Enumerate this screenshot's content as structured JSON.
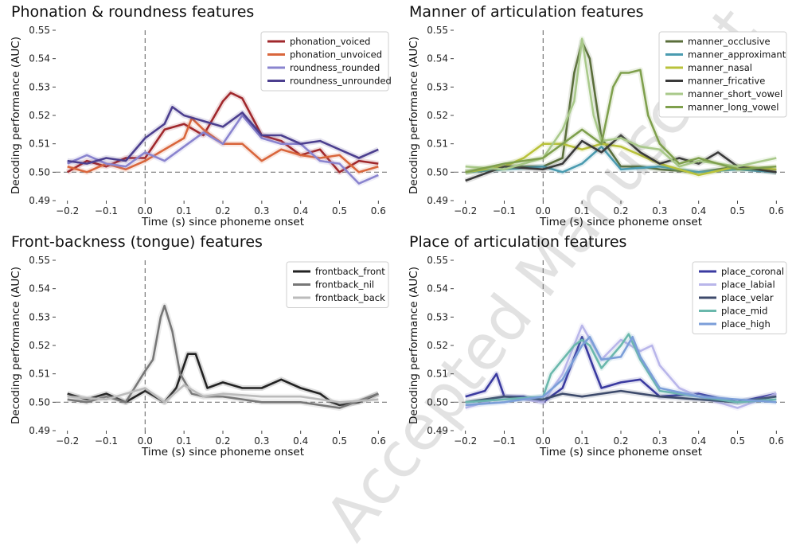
{
  "watermark": "Accepted Manuscript",
  "chart_data": [
    {
      "type": "line",
      "title": "Phonation & roundness features",
      "xlabel": "Time (s) since phoneme onset",
      "ylabel": "Decoding performance (AUC)",
      "xlim": [
        -0.23,
        0.63
      ],
      "ylim": [
        0.49,
        0.55
      ],
      "xticks": [
        -0.2,
        -0.1,
        0.0,
        0.1,
        0.2,
        0.3,
        0.4,
        0.5,
        0.6
      ],
      "xtick_labels": [
        "−0.2",
        "−0.1",
        "0.0",
        "0.1",
        "0.2",
        "0.3",
        "0.4",
        "0.5",
        "0.6"
      ],
      "yticks": [
        0.49,
        0.5,
        0.51,
        0.52,
        0.53,
        0.54,
        0.55
      ],
      "ytick_labels": [
        "0.49",
        "0.50",
        "0.51",
        "0.52",
        "0.53",
        "0.54",
        "0.55"
      ],
      "legend_position": "top-right",
      "series": [
        {
          "name": "phonation_voiced",
          "color": "#a0282c",
          "x": [
            -0.2,
            -0.15,
            -0.1,
            -0.05,
            0.0,
            0.05,
            0.1,
            0.15,
            0.2,
            0.22,
            0.25,
            0.3,
            0.35,
            0.4,
            0.45,
            0.5,
            0.55,
            0.6
          ],
          "y": [
            0.5,
            0.504,
            0.502,
            0.505,
            0.505,
            0.515,
            0.517,
            0.513,
            0.525,
            0.528,
            0.526,
            0.513,
            0.511,
            0.506,
            0.508,
            0.5,
            0.504,
            0.503
          ]
        },
        {
          "name": "phonation_unvoiced",
          "color": "#d9663c",
          "x": [
            -0.2,
            -0.15,
            -0.1,
            -0.05,
            0.0,
            0.05,
            0.1,
            0.12,
            0.15,
            0.2,
            0.25,
            0.3,
            0.35,
            0.4,
            0.45,
            0.5,
            0.55,
            0.6
          ],
          "y": [
            0.502,
            0.5,
            0.503,
            0.501,
            0.504,
            0.508,
            0.512,
            0.519,
            0.515,
            0.51,
            0.51,
            0.504,
            0.508,
            0.506,
            0.505,
            0.506,
            0.5,
            0.502
          ]
        },
        {
          "name": "roundness_rounded",
          "color": "#8a84cf",
          "x": [
            -0.2,
            -0.15,
            -0.1,
            -0.05,
            0.0,
            0.05,
            0.1,
            0.15,
            0.2,
            0.25,
            0.3,
            0.35,
            0.4,
            0.45,
            0.5,
            0.55,
            0.6
          ],
          "y": [
            0.503,
            0.506,
            0.503,
            0.502,
            0.507,
            0.504,
            0.509,
            0.514,
            0.51,
            0.52,
            0.512,
            0.51,
            0.51,
            0.504,
            0.503,
            0.496,
            0.499
          ]
        },
        {
          "name": "roundness_unrounded",
          "color": "#4c3f8f",
          "x": [
            -0.2,
            -0.15,
            -0.1,
            -0.05,
            0.0,
            0.05,
            0.07,
            0.1,
            0.15,
            0.2,
            0.25,
            0.3,
            0.35,
            0.4,
            0.45,
            0.5,
            0.55,
            0.6
          ],
          "y": [
            0.504,
            0.503,
            0.505,
            0.504,
            0.512,
            0.517,
            0.523,
            0.52,
            0.518,
            0.516,
            0.521,
            0.513,
            0.513,
            0.51,
            0.511,
            0.508,
            0.505,
            0.508
          ]
        }
      ]
    },
    {
      "type": "line",
      "title": "Manner of articulation features",
      "xlabel": "Time (s) since phoneme onset",
      "ylabel": "Decoding performance (AUC)",
      "xlim": [
        -0.23,
        0.63
      ],
      "ylim": [
        0.49,
        0.55
      ],
      "xticks": [
        -0.2,
        -0.1,
        0.0,
        0.1,
        0.2,
        0.3,
        0.4,
        0.5,
        0.6
      ],
      "xtick_labels": [
        "−0.2",
        "−0.1",
        "0.0",
        "0.1",
        "0.2",
        "0.3",
        "0.4",
        "0.5",
        "0.6"
      ],
      "yticks": [
        0.49,
        0.5,
        0.51,
        0.52,
        0.53,
        0.54,
        0.55
      ],
      "ytick_labels": [
        "0.49",
        "0.50",
        "0.51",
        "0.52",
        "0.53",
        "0.54",
        "0.55"
      ],
      "legend_position": "top-right",
      "series": [
        {
          "name": "manner_occlusive",
          "color": "#5a6e3a",
          "x": [
            -0.2,
            -0.1,
            0.0,
            0.05,
            0.08,
            0.1,
            0.12,
            0.15,
            0.2,
            0.25,
            0.3,
            0.4,
            0.5,
            0.6
          ],
          "y": [
            0.5,
            0.502,
            0.502,
            0.505,
            0.535,
            0.546,
            0.54,
            0.512,
            0.502,
            0.502,
            0.501,
            0.5,
            0.502,
            0.5
          ]
        },
        {
          "name": "manner_approximant",
          "color": "#4a9bb0",
          "x": [
            -0.2,
            -0.1,
            0.0,
            0.05,
            0.1,
            0.15,
            0.2,
            0.3,
            0.4,
            0.5,
            0.6
          ],
          "y": [
            0.5,
            0.501,
            0.502,
            0.5,
            0.503,
            0.509,
            0.501,
            0.502,
            0.5,
            0.501,
            0.5
          ]
        },
        {
          "name": "manner_nasal",
          "color": "#b9c23a",
          "x": [
            -0.2,
            -0.1,
            -0.05,
            0.0,
            0.05,
            0.1,
            0.15,
            0.2,
            0.3,
            0.4,
            0.5,
            0.6
          ],
          "y": [
            0.5,
            0.502,
            0.505,
            0.51,
            0.51,
            0.508,
            0.51,
            0.509,
            0.503,
            0.499,
            0.502,
            0.501
          ]
        },
        {
          "name": "manner_fricative",
          "color": "#3a3a3a",
          "x": [
            -0.2,
            -0.1,
            0.0,
            0.05,
            0.1,
            0.15,
            0.2,
            0.25,
            0.3,
            0.35,
            0.4,
            0.45,
            0.5,
            0.6
          ],
          "y": [
            0.497,
            0.502,
            0.501,
            0.503,
            0.511,
            0.507,
            0.513,
            0.507,
            0.503,
            0.505,
            0.503,
            0.507,
            0.502,
            0.5
          ]
        },
        {
          "name": "manner_short_vowel",
          "color": "#a9c98a",
          "x": [
            -0.2,
            -0.1,
            0.0,
            0.05,
            0.08,
            0.1,
            0.13,
            0.15,
            0.2,
            0.25,
            0.3,
            0.35,
            0.4,
            0.5,
            0.6
          ],
          "y": [
            0.502,
            0.501,
            0.505,
            0.515,
            0.525,
            0.547,
            0.52,
            0.511,
            0.512,
            0.509,
            0.508,
            0.502,
            0.504,
            0.502,
            0.505
          ]
        },
        {
          "name": "manner_long_vowel",
          "color": "#7fa04d",
          "x": [
            -0.2,
            -0.1,
            0.0,
            0.05,
            0.1,
            0.15,
            0.18,
            0.2,
            0.22,
            0.25,
            0.27,
            0.3,
            0.35,
            0.4,
            0.5,
            0.6
          ],
          "y": [
            0.5,
            0.503,
            0.505,
            0.51,
            0.515,
            0.51,
            0.53,
            0.535,
            0.535,
            0.536,
            0.52,
            0.51,
            0.503,
            0.505,
            0.501,
            0.502
          ]
        }
      ]
    },
    {
      "type": "line",
      "title": "Front-backness (tongue) features",
      "xlabel": "Time (s) since phoneme onset",
      "ylabel": "Decoding performance (AUC)",
      "xlim": [
        -0.23,
        0.63
      ],
      "ylim": [
        0.49,
        0.55
      ],
      "xticks": [
        -0.2,
        -0.1,
        0.0,
        0.1,
        0.2,
        0.3,
        0.4,
        0.5,
        0.6
      ],
      "xtick_labels": [
        "−0.2",
        "−0.1",
        "0.0",
        "0.1",
        "0.2",
        "0.3",
        "0.4",
        "0.5",
        "0.6"
      ],
      "yticks": [
        0.49,
        0.5,
        0.51,
        0.52,
        0.53,
        0.54,
        0.55
      ],
      "ytick_labels": [
        "0.49",
        "0.50",
        "0.51",
        "0.52",
        "0.53",
        "0.54",
        "0.55"
      ],
      "legend_position": "top-right",
      "series": [
        {
          "name": "frontback_front",
          "color": "#222222",
          "x": [
            -0.2,
            -0.15,
            -0.1,
            -0.05,
            0.0,
            0.05,
            0.08,
            0.11,
            0.13,
            0.16,
            0.2,
            0.25,
            0.3,
            0.35,
            0.4,
            0.45,
            0.48,
            0.5,
            0.55,
            0.6
          ],
          "y": [
            0.503,
            0.501,
            0.503,
            0.5,
            0.504,
            0.5,
            0.505,
            0.517,
            0.517,
            0.505,
            0.507,
            0.505,
            0.505,
            0.508,
            0.505,
            0.503,
            0.5,
            0.499,
            0.5,
            0.503
          ]
        },
        {
          "name": "frontback_nil",
          "color": "#777777",
          "x": [
            -0.2,
            -0.15,
            -0.1,
            -0.05,
            0.0,
            0.02,
            0.04,
            0.05,
            0.07,
            0.09,
            0.12,
            0.15,
            0.2,
            0.3,
            0.4,
            0.5,
            0.6
          ],
          "y": [
            0.501,
            0.5,
            0.502,
            0.5,
            0.511,
            0.515,
            0.53,
            0.534,
            0.525,
            0.51,
            0.503,
            0.502,
            0.502,
            0.5,
            0.5,
            0.498,
            0.503
          ]
        },
        {
          "name": "frontback_back",
          "color": "#bbbbbb",
          "x": [
            -0.2,
            -0.1,
            0.0,
            0.05,
            0.1,
            0.15,
            0.2,
            0.3,
            0.4,
            0.5,
            0.6
          ],
          "y": [
            0.502,
            0.501,
            0.505,
            0.5,
            0.506,
            0.502,
            0.503,
            0.502,
            0.502,
            0.5,
            0.501
          ]
        }
      ]
    },
    {
      "type": "line",
      "title": "Place of articulation features",
      "xlabel": "Time (s) since phoneme onset",
      "ylabel": "Decoding performance (AUC)",
      "xlim": [
        -0.23,
        0.63
      ],
      "ylim": [
        0.49,
        0.55
      ],
      "xticks": [
        -0.2,
        -0.1,
        0.0,
        0.1,
        0.2,
        0.3,
        0.4,
        0.5,
        0.6
      ],
      "xtick_labels": [
        "−0.2",
        "−0.1",
        "0.0",
        "0.1",
        "0.2",
        "0.3",
        "0.4",
        "0.5",
        "0.6"
      ],
      "yticks": [
        0.49,
        0.5,
        0.51,
        0.52,
        0.53,
        0.54,
        0.55
      ],
      "ytick_labels": [
        "0.49",
        "0.50",
        "0.51",
        "0.52",
        "0.53",
        "0.54",
        "0.55"
      ],
      "legend_position": "top-right",
      "series": [
        {
          "name": "place_coronal",
          "color": "#3a3aa0",
          "x": [
            -0.2,
            -0.15,
            -0.12,
            -0.1,
            -0.05,
            0.0,
            0.05,
            0.1,
            0.13,
            0.15,
            0.2,
            0.25,
            0.3,
            0.4,
            0.5,
            0.6
          ],
          "y": [
            0.502,
            0.504,
            0.51,
            0.502,
            0.502,
            0.5,
            0.505,
            0.523,
            0.512,
            0.505,
            0.507,
            0.508,
            0.502,
            0.503,
            0.5,
            0.503
          ]
        },
        {
          "name": "place_labial",
          "color": "#b9b6ea",
          "x": [
            -0.2,
            -0.1,
            0.0,
            0.05,
            0.1,
            0.15,
            0.2,
            0.25,
            0.28,
            0.3,
            0.35,
            0.4,
            0.5,
            0.6
          ],
          "y": [
            0.498,
            0.502,
            0.5,
            0.51,
            0.527,
            0.515,
            0.522,
            0.518,
            0.52,
            0.513,
            0.505,
            0.502,
            0.498,
            0.503
          ]
        },
        {
          "name": "place_velar",
          "color": "#3d4a6b",
          "x": [
            -0.2,
            -0.1,
            0.0,
            0.05,
            0.1,
            0.15,
            0.2,
            0.3,
            0.4,
            0.5,
            0.6
          ],
          "y": [
            0.5,
            0.502,
            0.501,
            0.503,
            0.502,
            0.503,
            0.504,
            0.502,
            0.501,
            0.5,
            0.502
          ]
        },
        {
          "name": "place_mid",
          "color": "#6ab8ac",
          "x": [
            -0.2,
            -0.1,
            0.0,
            0.02,
            0.05,
            0.08,
            0.1,
            0.12,
            0.15,
            0.2,
            0.22,
            0.25,
            0.3,
            0.4,
            0.5,
            0.6
          ],
          "y": [
            0.5,
            0.501,
            0.502,
            0.51,
            0.515,
            0.52,
            0.522,
            0.52,
            0.512,
            0.52,
            0.524,
            0.515,
            0.504,
            0.502,
            0.5,
            0.501
          ]
        },
        {
          "name": "place_high",
          "color": "#7b9ed8",
          "x": [
            -0.2,
            -0.1,
            0.0,
            0.05,
            0.1,
            0.12,
            0.15,
            0.2,
            0.23,
            0.25,
            0.3,
            0.4,
            0.5,
            0.6
          ],
          "y": [
            0.499,
            0.5,
            0.502,
            0.508,
            0.52,
            0.523,
            0.515,
            0.516,
            0.523,
            0.516,
            0.505,
            0.502,
            0.501,
            0.5
          ]
        }
      ]
    }
  ]
}
